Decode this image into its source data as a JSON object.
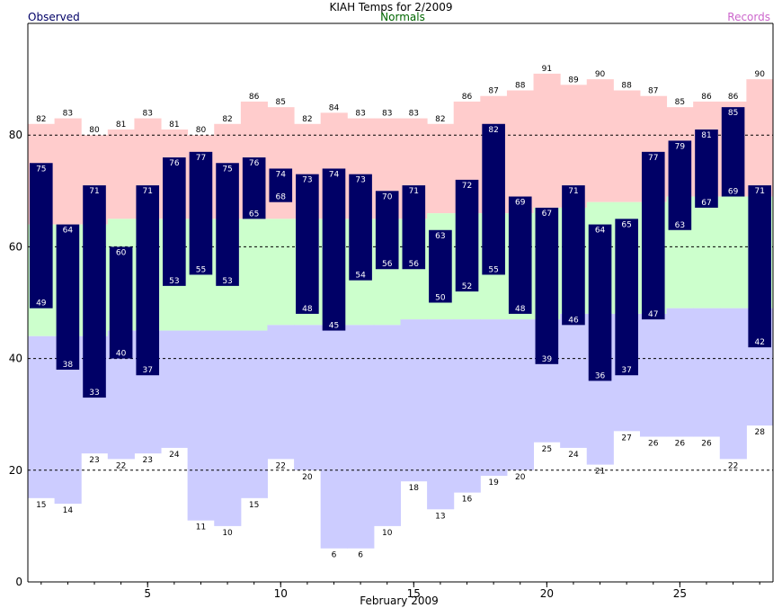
{
  "chart_data": {
    "type": "bar",
    "title": "KIAH Temps for 2/2009",
    "legend": {
      "observed": "Observed",
      "normals": "Normals",
      "records": "Records"
    },
    "xlabel": "February 2009",
    "ylim": [
      0,
      100
    ],
    "yticks": [
      0,
      20,
      40,
      60,
      80
    ],
    "xticks": [
      5,
      10,
      15,
      20,
      25
    ],
    "days": [
      1,
      2,
      3,
      4,
      5,
      6,
      7,
      8,
      9,
      10,
      11,
      12,
      13,
      14,
      15,
      16,
      17,
      18,
      19,
      20,
      21,
      22,
      23,
      24,
      25,
      26,
      27,
      28
    ],
    "record_high": [
      82,
      83,
      80,
      81,
      83,
      81,
      80,
      82,
      86,
      85,
      82,
      84,
      83,
      83,
      83,
      82,
      86,
      87,
      88,
      91,
      89,
      90,
      88,
      87,
      85,
      86,
      86,
      90
    ],
    "record_low": [
      15,
      14,
      23,
      22,
      23,
      24,
      11,
      10,
      15,
      22,
      20,
      6,
      6,
      10,
      18,
      13,
      16,
      19,
      20,
      25,
      24,
      21,
      27,
      26,
      26,
      26,
      22,
      28
    ],
    "normal_high": [
      64,
      64,
      64,
      65,
      65,
      65,
      65,
      65,
      65,
      65,
      65,
      65,
      65,
      65,
      65,
      66,
      66,
      66,
      66,
      67,
      67,
      68,
      68,
      68,
      69,
      69,
      69,
      69
    ],
    "normal_low": [
      44,
      44,
      44,
      45,
      45,
      45,
      45,
      45,
      45,
      46,
      46,
      46,
      46,
      46,
      47,
      47,
      47,
      47,
      47,
      47,
      48,
      48,
      48,
      48,
      49,
      49,
      49,
      49
    ],
    "observed_high": [
      75,
      64,
      71,
      60,
      71,
      76,
      77,
      75,
      76,
      74,
      73,
      74,
      73,
      70,
      71,
      63,
      72,
      82,
      69,
      67,
      71,
      64,
      65,
      77,
      79,
      81,
      85,
      71
    ],
    "observed_low": [
      49,
      38,
      33,
      40,
      37,
      53,
      55,
      53,
      65,
      68,
      48,
      45,
      54,
      56,
      56,
      50,
      52,
      55,
      48,
      39,
      46,
      36,
      37,
      47,
      63,
      67,
      69,
      42
    ],
    "colors": {
      "records": "#ffcccc",
      "normals": "#ccffcc",
      "lows": "#ccccff",
      "observed": "#000066",
      "observed_label": "#000066",
      "normals_label": "#006600",
      "records_label": "#cc66cc"
    }
  }
}
